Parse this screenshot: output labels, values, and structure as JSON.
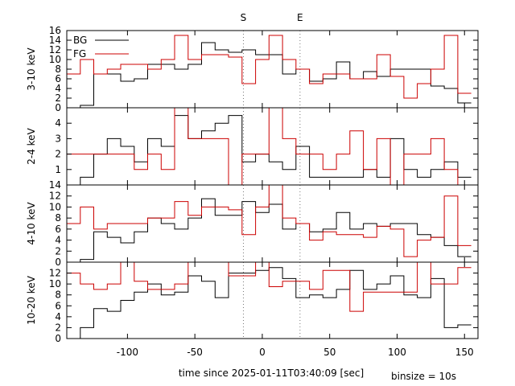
{
  "chart_data": {
    "type": "line",
    "subtype": "step",
    "xlabel": "time since 2025-01-11T03:40:09 [sec]",
    "binsize_label": "binsize = 10s",
    "xlim": [
      -145,
      160
    ],
    "x_ticks": [
      -100,
      -50,
      0,
      50,
      100,
      150
    ],
    "x_tick_labels": [
      "-100",
      "-50",
      "0",
      "50",
      "100",
      "150"
    ],
    "markers": [
      {
        "label": "S",
        "x": -14
      },
      {
        "label": "E",
        "x": 28
      }
    ],
    "colors": {
      "BG": "#000000",
      "FG": "#cc0000",
      "marker": "#777777"
    },
    "legend": {
      "position": "top-left",
      "entries": [
        "BG",
        "FG"
      ]
    },
    "bin_edges": [
      -145,
      -135,
      -125,
      -115,
      -105,
      -95,
      -85,
      -75,
      -65,
      -55,
      -45,
      -35,
      -25,
      -15,
      -5,
      5,
      15,
      25,
      35,
      45,
      55,
      65,
      75,
      85,
      95,
      105,
      115,
      125,
      135,
      145,
      155
    ],
    "panels": [
      {
        "ylabel": "3-10 keV",
        "ylim": [
          0,
          16
        ],
        "y_ticks": [
          0,
          2,
          4,
          6,
          8,
          10,
          12,
          14,
          16
        ],
        "y_tick_labels": [
          "0",
          "2",
          "4",
          "6",
          "8",
          "10",
          "12",
          "14",
          "16"
        ],
        "show_legend": true,
        "series": [
          {
            "name": "BG",
            "values": [
              0,
              0.5,
              7,
              7,
              5.5,
              6,
              9,
              9,
              8,
              9,
              13.5,
              12,
              11.5,
              12,
              11,
              11,
              7,
              8,
              5.5,
              6,
              9.5,
              6,
              7.5,
              6.5,
              8,
              8,
              8,
              4.5,
              4,
              1
            ]
          },
          {
            "name": "FG",
            "values": [
              7,
              10,
              7,
              8,
              9,
              9,
              8,
              10,
              15,
              10,
              11,
              11,
              10.5,
              5,
              10,
              15,
              10,
              8,
              5,
              7,
              7,
              6,
              6,
              11,
              6.5,
              2,
              5,
              8,
              15,
              3
            ]
          }
        ]
      },
      {
        "ylabel": "2-4 keV",
        "ylim": [
          0,
          5
        ],
        "y_ticks": [
          1,
          2,
          3,
          4
        ],
        "y_tick_labels": [
          "1",
          "2",
          "3",
          "4"
        ],
        "show_legend": false,
        "series": [
          {
            "name": "BG",
            "values": [
              0,
              0.5,
              2,
              3,
              2.5,
              1.5,
              3,
              2.5,
              4.5,
              3,
              3.5,
              4,
              4.5,
              1.5,
              2,
              1.5,
              1,
              2.5,
              0.5,
              0.5,
              0.5,
              0.5,
              1,
              0.5,
              3,
              1,
              0.5,
              1,
              1.5,
              0.5
            ]
          },
          {
            "name": "FG",
            "values": [
              2,
              2,
              2,
              2,
              2,
              1,
              2,
              1,
              5,
              3,
              3,
              3,
              0,
              2,
              2,
              5,
              3,
              2,
              2,
              1,
              2,
              3.5,
              1,
              3,
              0,
              2,
              2,
              3,
              1,
              0
            ]
          }
        ]
      },
      {
        "ylabel": "4-10 keV",
        "ylim": [
          0,
          14
        ],
        "y_ticks": [
          0,
          2,
          4,
          6,
          8,
          10,
          12,
          14
        ],
        "y_tick_labels": [
          "0",
          "2",
          "4",
          "6",
          "8",
          "10",
          "12",
          "14"
        ],
        "show_legend": false,
        "series": [
          {
            "name": "BG",
            "values": [
              0,
              0.5,
              5.5,
              4.5,
              3.5,
              5.5,
              8,
              7,
              6,
              8,
              11.5,
              8.5,
              8.5,
              11,
              9,
              10.5,
              6,
              7,
              5.5,
              6,
              9,
              6,
              7,
              6.5,
              7,
              7,
              5,
              4.5,
              3,
              1
            ]
          },
          {
            "name": "FG",
            "values": [
              7,
              10,
              6,
              7,
              7,
              7,
              8,
              8,
              11,
              8.5,
              10,
              10,
              9.5,
              5,
              10,
              14,
              8,
              7,
              4,
              5.5,
              5,
              5,
              4.5,
              6.5,
              6,
              1,
              4,
              4.5,
              12,
              3
            ]
          }
        ]
      },
      {
        "ylabel": "10-20 keV",
        "ylim": [
          0,
          14
        ],
        "y_ticks": [
          0,
          2,
          4,
          6,
          8,
          10,
          12
        ],
        "y_tick_labels": [
          "0",
          "2",
          "4",
          "6",
          "8",
          "10",
          "12"
        ],
        "show_legend": false,
        "series": [
          {
            "name": "BG",
            "values": [
              0,
              2,
              5.5,
              5,
              7,
              8.5,
              10,
              8,
              8.5,
              11.5,
              10.5,
              7.5,
              12,
              12,
              12.5,
              13,
              11,
              7.5,
              8,
              7.5,
              9,
              12.5,
              9,
              10,
              11.5,
              8,
              7.5,
              11,
              2,
              2.5
            ]
          },
          {
            "name": "FG",
            "values": [
              12,
              10,
              9,
              10,
              14,
              10.5,
              9,
              9,
              10,
              14,
              14,
              14,
              11.5,
              11.5,
              14,
              9.5,
              10.5,
              10.5,
              9,
              12.5,
              12.5,
              5,
              8.5,
              8.5,
              8.5,
              8.5,
              14,
              10,
              10,
              13
            ]
          }
        ]
      }
    ]
  }
}
